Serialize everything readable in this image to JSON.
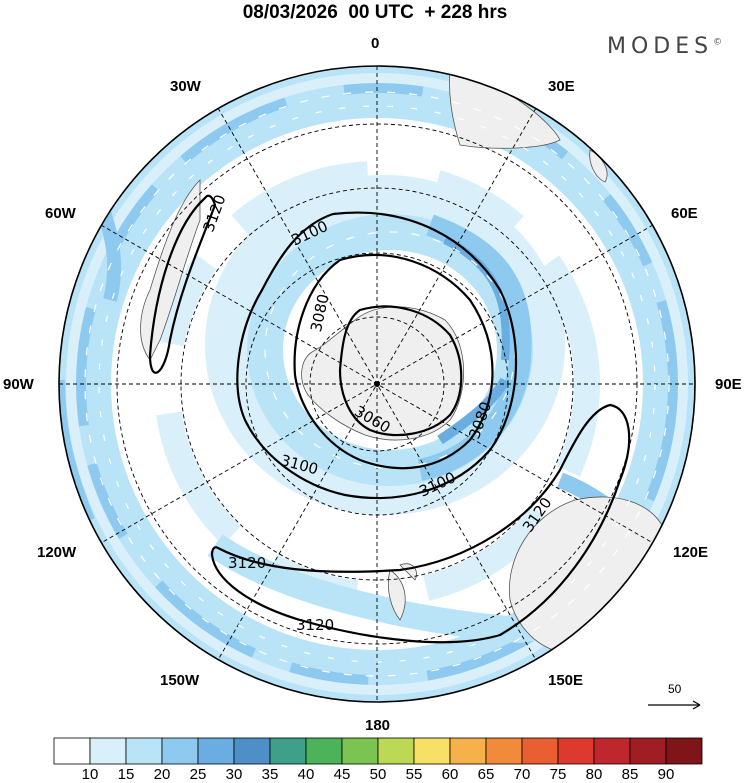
{
  "title": "08/03/2026  00 UTC  + 228 hrs",
  "brand": "MODES",
  "brand_mark": "©",
  "longitude_labels": {
    "lon_0": "0",
    "lon_30e": "30E",
    "lon_60e": "60E",
    "lon_90e": "90E",
    "lon_120e": "120E",
    "lon_150e": "150E",
    "lon_180": "180",
    "lon_150w": "150W",
    "lon_120w": "120W",
    "lon_90w": "90W",
    "lon_60w": "60W",
    "lon_30w": "30W"
  },
  "contours": {
    "c3120_a": "3120",
    "c3120_b": "3120",
    "c3120_c": "3120",
    "c3120_d": "3120",
    "c3100_a": "3100",
    "c3100_b": "3100",
    "c3100_c": "3100",
    "c3080_a": "3080",
    "c3080_b": "3080",
    "c3060": "3060"
  },
  "reference_vector": "50",
  "colorbar": {
    "labels": [
      "10",
      "15",
      "20",
      "25",
      "30",
      "35",
      "40",
      "45",
      "50",
      "55",
      "60",
      "65",
      "70",
      "75",
      "80",
      "85",
      "90"
    ],
    "colors": [
      "#ffffff",
      "#d9f0fb",
      "#b9e3f7",
      "#8ecaef",
      "#6aade0",
      "#4f8fc8",
      "#3fa08a",
      "#4db35a",
      "#7cc452",
      "#bcd954",
      "#f7e066",
      "#f6b14a",
      "#f18a3a",
      "#ea5f32",
      "#dd3a2d",
      "#c0272d",
      "#a01e23",
      "#7f1519"
    ]
  }
}
